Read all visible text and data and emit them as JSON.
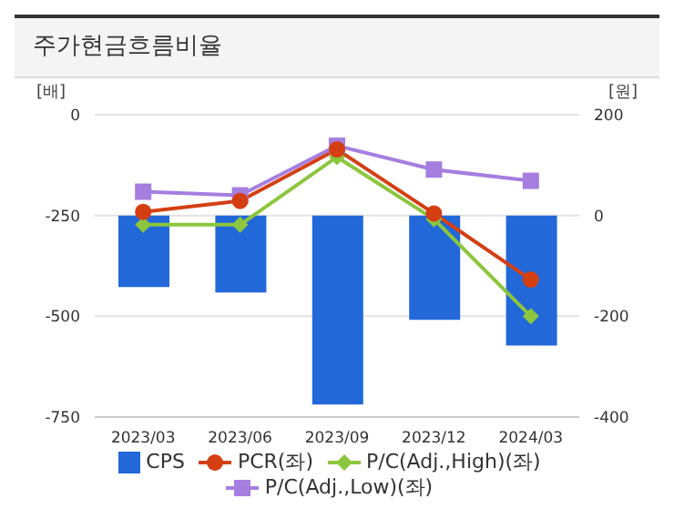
{
  "chart_data": {
    "type": "bar",
    "title": "주가현금흐름비율",
    "ylabel": "[배]",
    "y2label": "[원]",
    "categories": [
      "2023/03",
      "2023/06",
      "2023/09",
      "2023/12",
      "2024/03"
    ],
    "series": [
      {
        "name": "CPS",
        "axis": "y2",
        "color": "#2268d8",
        "values": [
          -142,
          -153,
          -375,
          -207,
          -258
        ]
      },
      {
        "name": "PCR(좌)",
        "type": "line",
        "axis": "y",
        "color": "#d43f12",
        "marker": "circle",
        "values": [
          -241,
          -214,
          -86,
          -245,
          -409
        ]
      },
      {
        "name": "P/C(Adj.,High)(좌)",
        "type": "line",
        "axis": "y",
        "color": "#8cc63e",
        "marker": "diamond",
        "values": [
          -273,
          -273,
          -105,
          -259,
          -500
        ]
      },
      {
        "name": "P/C(Adj.,Low)(좌)",
        "type": "line",
        "axis": "y",
        "color": "#a57ee0",
        "marker": "square",
        "values": [
          -191,
          -200,
          -77,
          -136,
          -164
        ]
      }
    ],
    "ylim": [
      -750,
      0
    ],
    "yticks": [
      0,
      -250,
      -500,
      -750
    ],
    "y2lim": [
      -400,
      200
    ],
    "y2ticks": [
      200,
      0,
      -200,
      -400
    ],
    "grid": "y",
    "legend": "bottom"
  }
}
